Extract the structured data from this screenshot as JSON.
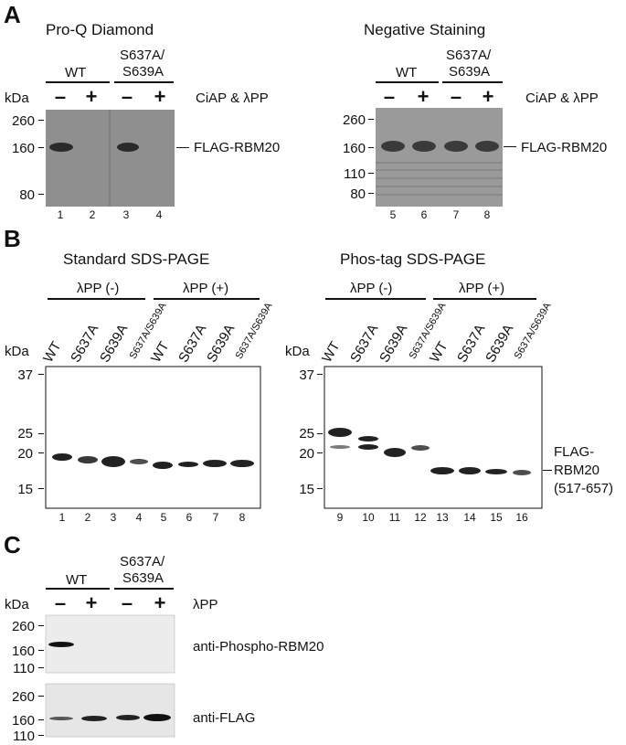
{
  "panels": {
    "a": {
      "letter": "A",
      "left_title": "Pro-Q Diamond",
      "right_title": "Negative Staining",
      "wt": "WT",
      "mut_line1": "S637A/",
      "mut_line2": "S639A",
      "kda": "kDa",
      "minus": "–",
      "plus": "+",
      "treatment": "CiAP & λPP",
      "left_ticks": [
        "260",
        "160",
        "80"
      ],
      "right_ticks": [
        "260",
        "160",
        "110",
        "80"
      ],
      "band_label": "FLAG-RBM20",
      "left_lanes": [
        "1",
        "2",
        "3",
        "4"
      ],
      "right_lanes": [
        "5",
        "6",
        "7",
        "8"
      ]
    },
    "b": {
      "letter": "B",
      "left_title": "Standard SDS-PAGE",
      "right_title": "Phos-tag SDS-PAGE",
      "lpp_minus": "λPP (-)",
      "lpp_plus": "λPP (+)",
      "kda": "kDa",
      "samples": [
        "WT",
        "S637A",
        "S639A",
        "S637A/S639A"
      ],
      "ticks": [
        "37",
        "25",
        "20",
        "15"
      ],
      "band_label_1": "FLAG-",
      "band_label_2": "RBM20",
      "band_label_3": "(517-657)",
      "left_lanes": [
        "1",
        "2",
        "3",
        "4",
        "5",
        "6",
        "7",
        "8"
      ],
      "right_lanes": [
        "9",
        "10",
        "11",
        "12",
        "13",
        "14",
        "15",
        "16"
      ]
    },
    "c": {
      "letter": "C",
      "wt": "WT",
      "mut_line1": "S637A/",
      "mut_line2": "S639A",
      "kda": "kDa",
      "minus": "–",
      "plus": "+",
      "treatment": "λPP",
      "ticks": [
        "260",
        "160",
        "110"
      ],
      "blot1_label": "anti-Phospho-RBM20",
      "blot2_label": "anti-FLAG"
    }
  }
}
